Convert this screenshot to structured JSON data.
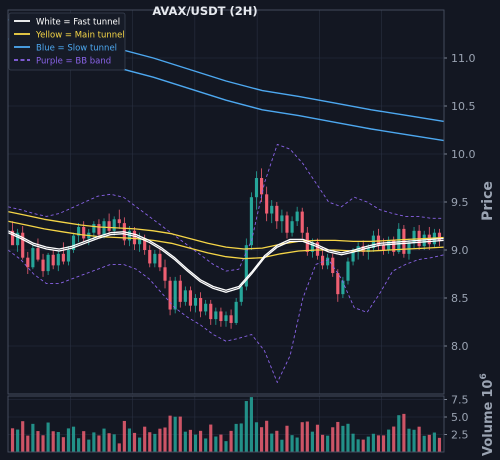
{
  "chart_data": {
    "type": "candlestick",
    "title": "AVAX/USDT (2H)",
    "ylabel": "Price",
    "volume_label": "Volume",
    "volume_exponent": "10",
    "volume_exponent_power": "6",
    "ylim": [
      7.5,
      11.5
    ],
    "yticks": [
      "8.0",
      "8.5",
      "9.0",
      "9.5",
      "10.0",
      "10.5",
      "11.0"
    ],
    "volume_ylim": [
      0,
      8.0
    ],
    "volume_yticks": [
      "2.5",
      "5.0",
      "7.5"
    ],
    "grid": true,
    "legend_position": "top-left",
    "colors": {
      "background": "#131722",
      "grid": "#2a3142",
      "axis_text": "#9aa3b2",
      "up": "#26a69a",
      "down": "#ef5f72",
      "fast_tunnel": "#ffffff",
      "main_tunnel": "#f5d547",
      "slow_tunnel": "#4da8f0",
      "bb_band": "#8a63e8"
    },
    "legend": [
      {
        "label": "White = Fast tunnel",
        "color": "#ffffff",
        "style": "solid"
      },
      {
        "label": "Yellow = Main tunnel",
        "color": "#f5d547",
        "style": "solid"
      },
      {
        "label": "Blue = Slow tunnel",
        "color": "#4da8f0",
        "style": "solid"
      },
      {
        "label": "Purple = BB band",
        "color": "#8a63e8",
        "style": "dashed"
      }
    ],
    "candles": [
      {
        "o": 9.2,
        "h": 9.3,
        "l": 9.07,
        "c": 9.05
      },
      {
        "o": 9.05,
        "h": 9.22,
        "l": 8.98,
        "c": 9.18
      },
      {
        "o": 9.18,
        "h": 9.25,
        "l": 8.9,
        "c": 8.92
      },
      {
        "o": 8.92,
        "h": 8.98,
        "l": 8.75,
        "c": 8.82
      },
      {
        "o": 8.82,
        "h": 9.05,
        "l": 8.8,
        "c": 9.02
      },
      {
        "o": 9.02,
        "h": 9.12,
        "l": 8.88,
        "c": 8.9
      },
      {
        "o": 8.9,
        "h": 8.96,
        "l": 8.72,
        "c": 8.78
      },
      {
        "o": 8.78,
        "h": 8.97,
        "l": 8.74,
        "c": 8.95
      },
      {
        "o": 8.95,
        "h": 9.0,
        "l": 8.8,
        "c": 8.84
      },
      {
        "o": 8.84,
        "h": 8.99,
        "l": 8.78,
        "c": 8.96
      },
      {
        "o": 8.96,
        "h": 9.08,
        "l": 8.85,
        "c": 8.88
      },
      {
        "o": 8.88,
        "h": 9.04,
        "l": 8.84,
        "c": 9.0
      },
      {
        "o": 9.0,
        "h": 9.18,
        "l": 8.97,
        "c": 9.15
      },
      {
        "o": 9.15,
        "h": 9.28,
        "l": 9.08,
        "c": 9.24
      },
      {
        "o": 9.24,
        "h": 9.3,
        "l": 9.08,
        "c": 9.12
      },
      {
        "o": 9.12,
        "h": 9.22,
        "l": 9.05,
        "c": 9.18
      },
      {
        "o": 9.18,
        "h": 9.3,
        "l": 9.1,
        "c": 9.27
      },
      {
        "o": 9.27,
        "h": 9.32,
        "l": 9.12,
        "c": 9.16
      },
      {
        "o": 9.16,
        "h": 9.33,
        "l": 9.12,
        "c": 9.3
      },
      {
        "o": 9.3,
        "h": 9.38,
        "l": 9.16,
        "c": 9.2
      },
      {
        "o": 9.2,
        "h": 9.35,
        "l": 9.15,
        "c": 9.32
      },
      {
        "o": 9.32,
        "h": 9.42,
        "l": 9.22,
        "c": 9.28
      },
      {
        "o": 9.28,
        "h": 9.34,
        "l": 9.05,
        "c": 9.1
      },
      {
        "o": 9.1,
        "h": 9.25,
        "l": 9.04,
        "c": 9.2
      },
      {
        "o": 9.2,
        "h": 9.24,
        "l": 9.0,
        "c": 9.06
      },
      {
        "o": 9.06,
        "h": 9.18,
        "l": 8.98,
        "c": 9.12
      },
      {
        "o": 9.12,
        "h": 9.16,
        "l": 8.95,
        "c": 9.0
      },
      {
        "o": 9.0,
        "h": 9.05,
        "l": 8.82,
        "c": 8.86
      },
      {
        "o": 8.86,
        "h": 9.0,
        "l": 8.82,
        "c": 8.96
      },
      {
        "o": 8.96,
        "h": 9.02,
        "l": 8.78,
        "c": 8.82
      },
      {
        "o": 8.82,
        "h": 8.9,
        "l": 8.6,
        "c": 8.68
      },
      {
        "o": 8.68,
        "h": 8.72,
        "l": 8.32,
        "c": 8.38
      },
      {
        "o": 8.38,
        "h": 8.72,
        "l": 8.34,
        "c": 8.68
      },
      {
        "o": 8.68,
        "h": 8.74,
        "l": 8.4,
        "c": 8.46
      },
      {
        "o": 8.46,
        "h": 8.62,
        "l": 8.42,
        "c": 8.58
      },
      {
        "o": 8.58,
        "h": 8.62,
        "l": 8.36,
        "c": 8.42
      },
      {
        "o": 8.42,
        "h": 8.54,
        "l": 8.35,
        "c": 8.5
      },
      {
        "o": 8.5,
        "h": 8.56,
        "l": 8.3,
        "c": 8.36
      },
      {
        "o": 8.36,
        "h": 8.48,
        "l": 8.32,
        "c": 8.44
      },
      {
        "o": 8.44,
        "h": 8.48,
        "l": 8.22,
        "c": 8.28
      },
      {
        "o": 8.28,
        "h": 8.4,
        "l": 8.22,
        "c": 8.36
      },
      {
        "o": 8.36,
        "h": 8.4,
        "l": 8.2,
        "c": 8.26
      },
      {
        "o": 8.26,
        "h": 8.36,
        "l": 8.2,
        "c": 8.32
      },
      {
        "o": 8.32,
        "h": 8.38,
        "l": 8.18,
        "c": 8.24
      },
      {
        "o": 8.24,
        "h": 8.5,
        "l": 8.22,
        "c": 8.46
      },
      {
        "o": 8.46,
        "h": 8.66,
        "l": 8.42,
        "c": 8.62
      },
      {
        "o": 8.62,
        "h": 9.12,
        "l": 8.58,
        "c": 9.05
      },
      {
        "o": 9.05,
        "h": 9.6,
        "l": 9.0,
        "c": 9.55
      },
      {
        "o": 9.55,
        "h": 9.82,
        "l": 9.42,
        "c": 9.75
      },
      {
        "o": 9.75,
        "h": 9.85,
        "l": 9.5,
        "c": 9.58
      },
      {
        "o": 9.58,
        "h": 9.66,
        "l": 9.3,
        "c": 9.38
      },
      {
        "o": 9.38,
        "h": 9.52,
        "l": 9.28,
        "c": 9.46
      },
      {
        "o": 9.46,
        "h": 9.5,
        "l": 9.22,
        "c": 9.3
      },
      {
        "o": 9.3,
        "h": 9.42,
        "l": 9.18,
        "c": 9.36
      },
      {
        "o": 9.36,
        "h": 9.4,
        "l": 9.12,
        "c": 9.18
      },
      {
        "o": 9.18,
        "h": 9.35,
        "l": 9.14,
        "c": 9.3
      },
      {
        "o": 9.3,
        "h": 9.45,
        "l": 9.25,
        "c": 9.4
      },
      {
        "o": 9.4,
        "h": 9.44,
        "l": 9.12,
        "c": 9.18
      },
      {
        "o": 9.18,
        "h": 9.24,
        "l": 8.94,
        "c": 8.98
      },
      {
        "o": 8.98,
        "h": 9.12,
        "l": 8.92,
        "c": 9.08
      },
      {
        "o": 9.08,
        "h": 9.12,
        "l": 8.9,
        "c": 8.94
      },
      {
        "o": 8.94,
        "h": 9.02,
        "l": 8.8,
        "c": 8.84
      },
      {
        "o": 8.84,
        "h": 8.96,
        "l": 8.8,
        "c": 8.92
      },
      {
        "o": 8.92,
        "h": 8.96,
        "l": 8.72,
        "c": 8.76
      },
      {
        "o": 8.76,
        "h": 8.8,
        "l": 8.46,
        "c": 8.54
      },
      {
        "o": 8.54,
        "h": 8.72,
        "l": 8.5,
        "c": 8.68
      },
      {
        "o": 8.68,
        "h": 8.92,
        "l": 8.64,
        "c": 8.88
      },
      {
        "o": 8.88,
        "h": 9.02,
        "l": 8.84,
        "c": 8.98
      },
      {
        "o": 8.98,
        "h": 9.08,
        "l": 8.9,
        "c": 9.04
      },
      {
        "o": 9.04,
        "h": 9.1,
        "l": 8.94,
        "c": 8.98
      },
      {
        "o": 8.98,
        "h": 9.06,
        "l": 8.9,
        "c": 9.02
      },
      {
        "o": 9.02,
        "h": 9.2,
        "l": 8.98,
        "c": 9.15
      },
      {
        "o": 9.15,
        "h": 9.22,
        "l": 9.0,
        "c": 9.05
      },
      {
        "o": 9.05,
        "h": 9.12,
        "l": 8.95,
        "c": 9.0
      },
      {
        "o": 9.0,
        "h": 9.14,
        "l": 8.96,
        "c": 9.1
      },
      {
        "o": 9.1,
        "h": 9.14,
        "l": 8.94,
        "c": 8.98
      },
      {
        "o": 8.98,
        "h": 9.28,
        "l": 8.96,
        "c": 9.22
      },
      {
        "o": 9.22,
        "h": 9.26,
        "l": 8.92,
        "c": 8.96
      },
      {
        "o": 8.96,
        "h": 9.12,
        "l": 8.9,
        "c": 9.08
      },
      {
        "o": 9.08,
        "h": 9.24,
        "l": 9.02,
        "c": 9.2
      },
      {
        "o": 9.2,
        "h": 9.26,
        "l": 9.0,
        "c": 9.04
      },
      {
        "o": 9.04,
        "h": 9.2,
        "l": 9.0,
        "c": 9.16
      },
      {
        "o": 9.16,
        "h": 9.24,
        "l": 9.0,
        "c": 9.06
      },
      {
        "o": 9.06,
        "h": 9.22,
        "l": 9.02,
        "c": 9.18
      },
      {
        "o": 9.18,
        "h": 9.22,
        "l": 9.04,
        "c": 9.1
      }
    ],
    "fast_tunnel": [
      [
        9.18,
        9.2
      ],
      [
        9.12,
        9.14
      ],
      [
        9.05,
        9.07
      ],
      [
        9.01,
        9.03
      ],
      [
        8.99,
        9.01
      ],
      [
        9.02,
        9.04
      ],
      [
        9.07,
        9.09
      ],
      [
        9.12,
        9.14
      ],
      [
        9.16,
        9.18
      ],
      [
        9.17,
        9.19
      ],
      [
        9.14,
        9.16
      ],
      [
        9.08,
        9.1
      ],
      [
        9.0,
        9.02
      ],
      [
        8.9,
        8.92
      ],
      [
        8.78,
        8.8
      ],
      [
        8.67,
        8.69
      ],
      [
        8.6,
        8.62
      ],
      [
        8.56,
        8.58
      ],
      [
        8.6,
        8.62
      ],
      [
        8.75,
        8.77
      ],
      [
        8.92,
        8.94
      ],
      [
        9.03,
        9.05
      ],
      [
        9.09,
        9.11
      ],
      [
        9.09,
        9.11
      ],
      [
        9.04,
        9.06
      ],
      [
        8.98,
        9.0
      ],
      [
        8.95,
        8.97
      ],
      [
        8.98,
        9.0
      ],
      [
        9.02,
        9.04
      ],
      [
        9.05,
        9.07
      ],
      [
        9.06,
        9.08
      ],
      [
        9.07,
        9.09
      ],
      [
        9.08,
        9.1
      ],
      [
        9.09,
        9.11
      ],
      [
        9.1,
        9.12
      ]
    ],
    "main_tunnel": [
      [
        9.3,
        9.4
      ],
      [
        9.26,
        9.36
      ],
      [
        9.22,
        9.32
      ],
      [
        9.19,
        9.29
      ],
      [
        9.16,
        9.26
      ],
      [
        9.14,
        9.24
      ],
      [
        9.13,
        9.23
      ],
      [
        9.12,
        9.22
      ],
      [
        9.1,
        9.2
      ],
      [
        9.07,
        9.17
      ],
      [
        9.02,
        9.12
      ],
      [
        8.97,
        9.07
      ],
      [
        8.93,
        9.03
      ],
      [
        8.91,
        9.01
      ],
      [
        8.92,
        9.02
      ],
      [
        8.96,
        9.06
      ],
      [
        8.99,
        9.09
      ],
      [
        9.0,
        9.1
      ],
      [
        9.0,
        9.1
      ],
      [
        8.99,
        9.09
      ],
      [
        8.99,
        9.09
      ],
      [
        9.0,
        9.1
      ],
      [
        9.01,
        9.11
      ],
      [
        9.02,
        9.12
      ],
      [
        9.03,
        9.13
      ]
    ],
    "slow_tunnel": [
      [
        11.2,
        11.4
      ],
      [
        11.1,
        11.3
      ],
      [
        11.0,
        11.2
      ],
      [
        10.9,
        11.1
      ],
      [
        10.8,
        11.0
      ],
      [
        10.68,
        10.88
      ],
      [
        10.56,
        10.76
      ],
      [
        10.46,
        10.66
      ],
      [
        10.4,
        10.6
      ],
      [
        10.33,
        10.53
      ],
      [
        10.26,
        10.46
      ],
      [
        10.2,
        10.4
      ],
      [
        10.14,
        10.34
      ]
    ],
    "bb_band": {
      "upper": [
        9.45,
        9.42,
        9.38,
        9.35,
        9.38,
        9.44,
        9.5,
        9.56,
        9.58,
        9.55,
        9.45,
        9.35,
        9.25,
        9.15,
        9.05,
        8.95,
        8.85,
        8.78,
        8.8,
        9.1,
        9.7,
        10.1,
        10.05,
        9.9,
        9.7,
        9.5,
        9.45,
        9.55,
        9.5,
        9.42,
        9.38,
        9.35,
        9.35,
        9.33,
        9.33
      ],
      "lower": [
        9.0,
        8.9,
        8.75,
        8.65,
        8.65,
        8.7,
        8.75,
        8.8,
        8.85,
        8.85,
        8.8,
        8.7,
        8.55,
        8.4,
        8.3,
        8.22,
        8.12,
        8.05,
        8.08,
        8.12,
        7.95,
        7.62,
        7.9,
        8.5,
        8.85,
        8.9,
        8.7,
        8.4,
        8.35,
        8.55,
        8.78,
        8.85,
        8.9,
        8.92,
        8.95
      ]
    }
  }
}
